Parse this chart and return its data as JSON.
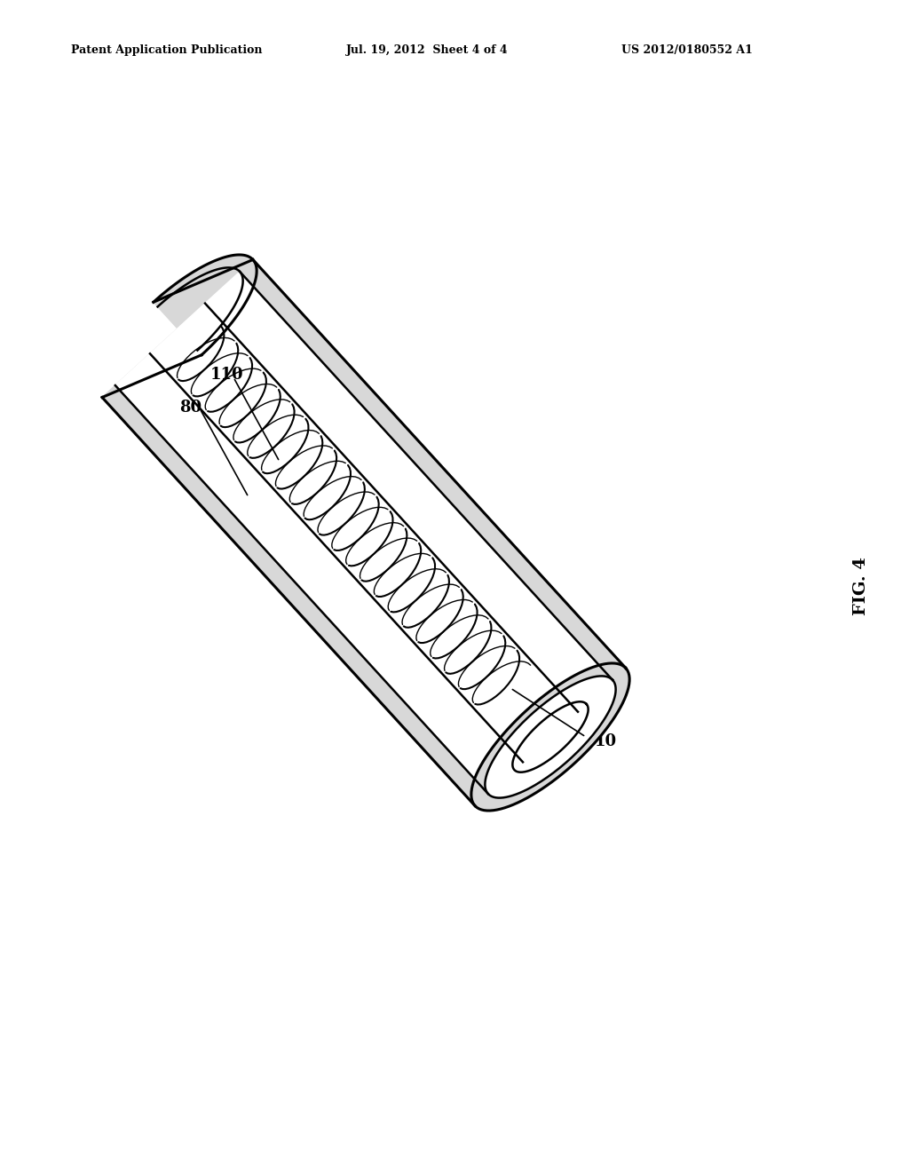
{
  "bg_color": "#ffffff",
  "line_color": "#000000",
  "header_left": "Patent Application Publication",
  "header_mid": "Jul. 19, 2012  Sheet 4 of 4",
  "header_right": "US 2012/0180552 A1",
  "fig_label": "FIG. 4",
  "label_10": "10",
  "label_80": "80",
  "label_110": "110",
  "header_fontsize": 9,
  "label_fontsize": 13,
  "fig_label_fontsize": 14
}
